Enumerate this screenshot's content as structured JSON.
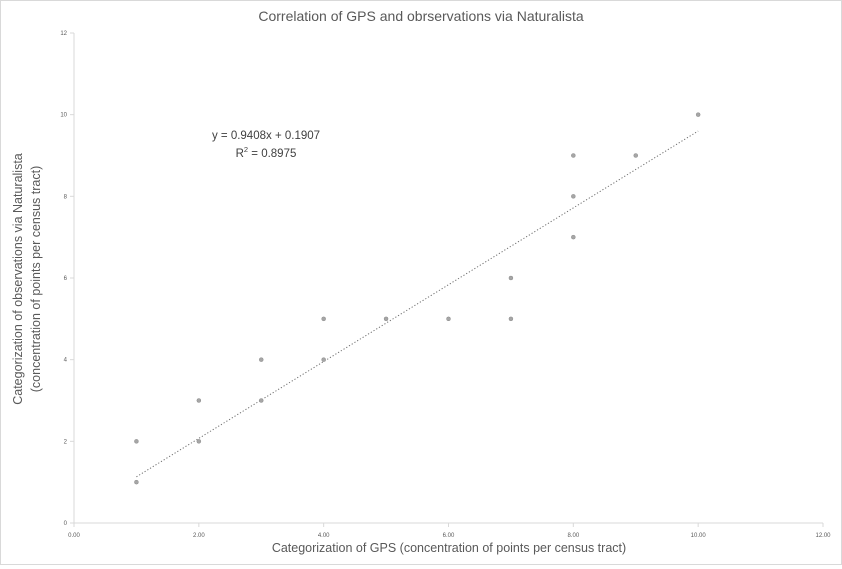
{
  "chart_data": {
    "type": "scatter",
    "title": "Correlation of GPS and obrservations via Naturalista",
    "xlabel": "Categorization of  GPS (concentration of points per census tract)",
    "ylabel_lines": [
      "Categorization of  observations via Naturalista",
      "(concentration of points per census tract)"
    ],
    "xlim": [
      0,
      12
    ],
    "ylim": [
      0,
      12
    ],
    "x_ticks": [
      0,
      2,
      4,
      6,
      8,
      10,
      12
    ],
    "x_tick_labels": [
      "0.00",
      "2.00",
      "4.00",
      "6.00",
      "8.00",
      "10.00",
      "12.00"
    ],
    "y_ticks": [
      0,
      2,
      4,
      6,
      8,
      10,
      12
    ],
    "y_tick_labels": [
      "0",
      "2",
      "4",
      "6",
      "8",
      "10",
      "12"
    ],
    "grid": false,
    "legend": "none",
    "points": [
      {
        "x": 1,
        "y": 1
      },
      {
        "x": 1,
        "y": 2
      },
      {
        "x": 2,
        "y": 2
      },
      {
        "x": 2,
        "y": 3
      },
      {
        "x": 3,
        "y": 3
      },
      {
        "x": 3,
        "y": 4
      },
      {
        "x": 4,
        "y": 4
      },
      {
        "x": 4,
        "y": 5
      },
      {
        "x": 5,
        "y": 5
      },
      {
        "x": 6,
        "y": 5
      },
      {
        "x": 7,
        "y": 5
      },
      {
        "x": 7,
        "y": 6
      },
      {
        "x": 8,
        "y": 7
      },
      {
        "x": 8,
        "y": 8
      },
      {
        "x": 8,
        "y": 9
      },
      {
        "x": 9,
        "y": 9
      },
      {
        "x": 10,
        "y": 10
      }
    ],
    "trendline": {
      "slope": 0.9408,
      "intercept": 0.1907,
      "x_range": [
        1,
        10
      ],
      "style": "dotted"
    },
    "annotations": {
      "equation": "y = 0.9408x + 0.1907",
      "r2_prefix": "R",
      "r2_sup": "2",
      "r2_value": " = 0.8975"
    },
    "colors": {
      "marker": "#a6a6a6",
      "trendline": "#6f6f6f",
      "axis": "#d9d9d9",
      "text": "#595959"
    }
  }
}
